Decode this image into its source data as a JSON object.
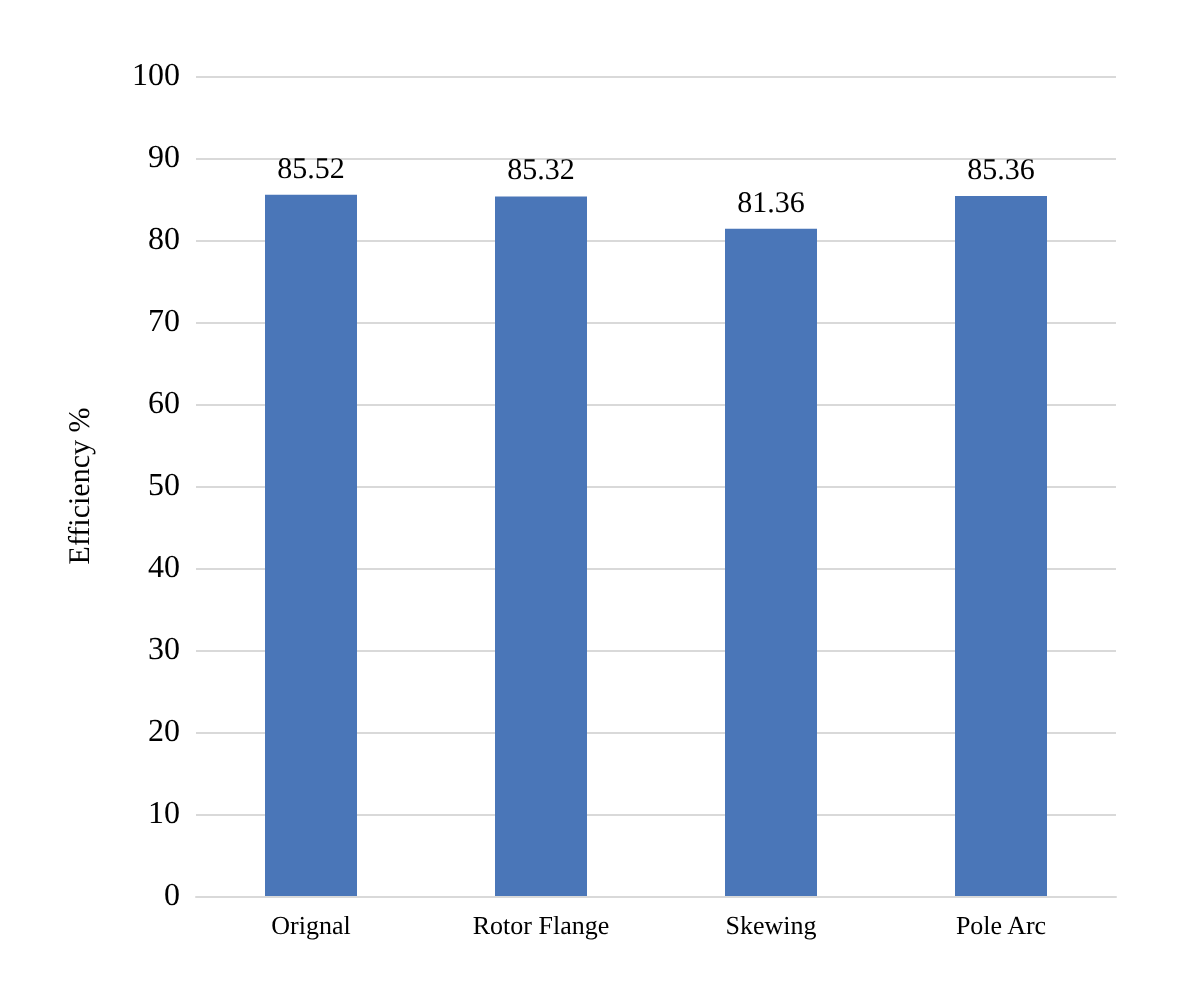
{
  "chart_data": {
    "type": "bar",
    "ylabel": "Efficiency %",
    "categories": [
      "Orignal",
      "Rotor Flange",
      "Skewing",
      "Pole Arc"
    ],
    "values": [
      85.52,
      85.32,
      81.36,
      85.36
    ],
    "color": "#4a76b8",
    "ylim": [
      0,
      100
    ],
    "yticks": [
      0,
      10,
      20,
      30,
      40,
      50,
      60,
      70,
      80,
      90,
      100
    ],
    "grid": "y",
    "data_labels": true
  }
}
